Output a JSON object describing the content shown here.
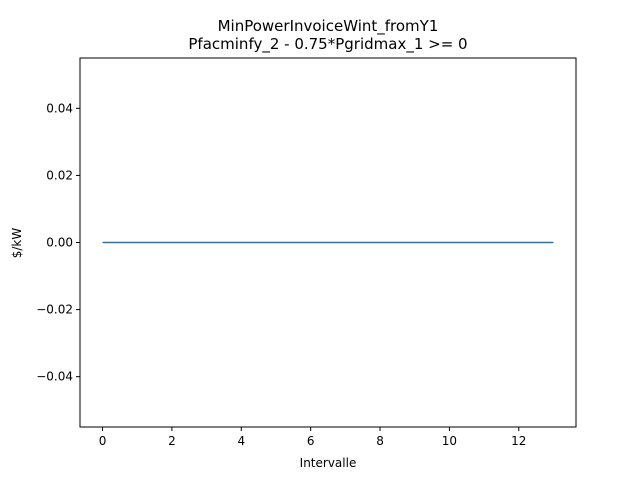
{
  "chart_data": {
    "type": "line",
    "title": "MinPowerInvoiceWint_fromY1",
    "subtitle": "Pfacminfy_2 - 0.75*Pgridmax_1 >= 0",
    "xlabel": "Intervalle",
    "ylabel": "$/kW",
    "xlim": [
      -0.65,
      13.65
    ],
    "ylim": [
      -0.055,
      0.055
    ],
    "x_ticks": [
      0,
      2,
      4,
      6,
      8,
      10,
      12
    ],
    "x_tick_labels": [
      "0",
      "2",
      "4",
      "6",
      "8",
      "10",
      "12"
    ],
    "y_ticks": [
      -0.04,
      -0.02,
      0.0,
      0.02,
      0.04
    ],
    "y_tick_labels": [
      "−0.04",
      "−0.02",
      "0.00",
      "0.02",
      "0.04"
    ],
    "grid": false,
    "series": [
      {
        "color": "#1f77b4",
        "x": [
          0,
          1,
          2,
          3,
          4,
          5,
          6,
          7,
          8,
          9,
          10,
          11,
          12,
          13
        ],
        "y": [
          0,
          0,
          0,
          0,
          0,
          0,
          0,
          0,
          0,
          0,
          0,
          0,
          0,
          0
        ]
      }
    ]
  }
}
